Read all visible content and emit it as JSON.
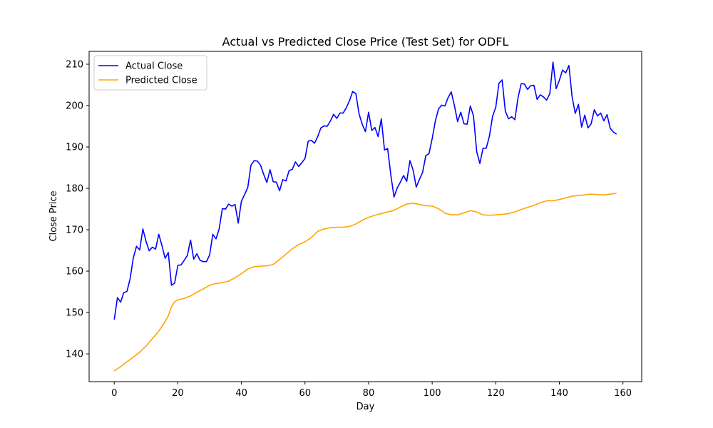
{
  "chart_data": {
    "type": "line",
    "title": "Actual vs Predicted Close Price (Test Set) for ODFL",
    "xlabel": "Day",
    "ylabel": "Close Price",
    "xlim": [
      -7.9,
      165.9
    ],
    "ylim": [
      133.3,
      213.1
    ],
    "xticks": [
      0,
      20,
      40,
      60,
      80,
      100,
      120,
      140,
      160
    ],
    "yticks": [
      140,
      150,
      160,
      170,
      180,
      190,
      200,
      210
    ],
    "grid": false,
    "legend_position": "top-left",
    "series": [
      {
        "name": "Actual Close",
        "color": "#0000ff",
        "points": [
          [
            0,
            148.3
          ],
          [
            1,
            153.6
          ],
          [
            2,
            152.5
          ],
          [
            3,
            154.8
          ],
          [
            4,
            155.1
          ],
          [
            5,
            158.2
          ],
          [
            6,
            163.2
          ],
          [
            7,
            166.0
          ],
          [
            8,
            165.1
          ],
          [
            9,
            170.2
          ],
          [
            10,
            167.2
          ],
          [
            11,
            164.9
          ],
          [
            12,
            165.8
          ],
          [
            13,
            165.3
          ],
          [
            14,
            168.9
          ],
          [
            15,
            166.2
          ],
          [
            16,
            163.1
          ],
          [
            17,
            164.5
          ],
          [
            18,
            156.6
          ],
          [
            19,
            157.1
          ],
          [
            20,
            161.4
          ],
          [
            21,
            161.5
          ],
          [
            22,
            162.6
          ],
          [
            23,
            163.8
          ],
          [
            24,
            167.5
          ],
          [
            25,
            162.9
          ],
          [
            26,
            164.2
          ],
          [
            27,
            162.6
          ],
          [
            28,
            162.3
          ],
          [
            29,
            162.3
          ],
          [
            30,
            163.9
          ],
          [
            31,
            168.9
          ],
          [
            32,
            167.8
          ],
          [
            33,
            170.2
          ],
          [
            34,
            175.1
          ],
          [
            35,
            175.0
          ],
          [
            36,
            176.2
          ],
          [
            37,
            175.7
          ],
          [
            38,
            176.1
          ],
          [
            39,
            171.6
          ],
          [
            40,
            176.9
          ],
          [
            41,
            178.5
          ],
          [
            42,
            180.2
          ],
          [
            43,
            185.6
          ],
          [
            44,
            186.7
          ],
          [
            45,
            186.6
          ],
          [
            46,
            185.6
          ],
          [
            47,
            183.4
          ],
          [
            48,
            181.4
          ],
          [
            49,
            184.5
          ],
          [
            50,
            181.6
          ],
          [
            51,
            181.5
          ],
          [
            52,
            179.4
          ],
          [
            53,
            182.1
          ],
          [
            54,
            181.8
          ],
          [
            55,
            184.3
          ],
          [
            56,
            184.6
          ],
          [
            57,
            186.4
          ],
          [
            58,
            185.3
          ],
          [
            59,
            186.2
          ],
          [
            60,
            187.2
          ],
          [
            61,
            191.4
          ],
          [
            62,
            191.6
          ],
          [
            63,
            190.9
          ],
          [
            64,
            192.5
          ],
          [
            65,
            194.6
          ],
          [
            66,
            195.1
          ],
          [
            67,
            195.0
          ],
          [
            68,
            196.3
          ],
          [
            69,
            197.9
          ],
          [
            70,
            196.9
          ],
          [
            71,
            198.2
          ],
          [
            72,
            198.2
          ],
          [
            73,
            199.5
          ],
          [
            74,
            201.2
          ],
          [
            75,
            203.4
          ],
          [
            76,
            202.9
          ],
          [
            77,
            198.0
          ],
          [
            78,
            195.5
          ],
          [
            79,
            193.7
          ],
          [
            80,
            198.4
          ],
          [
            81,
            194.0
          ],
          [
            82,
            194.7
          ],
          [
            83,
            192.5
          ],
          [
            84,
            196.8
          ],
          [
            85,
            189.3
          ],
          [
            86,
            189.6
          ],
          [
            87,
            183.2
          ],
          [
            88,
            177.9
          ],
          [
            89,
            180.1
          ],
          [
            90,
            181.5
          ],
          [
            91,
            183.1
          ],
          [
            92,
            181.7
          ],
          [
            93,
            186.7
          ],
          [
            94,
            184.4
          ],
          [
            95,
            180.3
          ],
          [
            96,
            182.2
          ],
          [
            97,
            183.9
          ],
          [
            98,
            187.9
          ],
          [
            99,
            188.4
          ],
          [
            100,
            192.0
          ],
          [
            101,
            196.3
          ],
          [
            102,
            199.2
          ],
          [
            103,
            200.1
          ],
          [
            104,
            199.9
          ],
          [
            105,
            201.9
          ],
          [
            106,
            203.3
          ],
          [
            107,
            200.0
          ],
          [
            108,
            196.1
          ],
          [
            109,
            198.4
          ],
          [
            110,
            195.6
          ],
          [
            111,
            195.5
          ],
          [
            112,
            199.9
          ],
          [
            113,
            197.5
          ],
          [
            114,
            188.9
          ],
          [
            115,
            186.0
          ],
          [
            116,
            189.7
          ],
          [
            117,
            189.7
          ],
          [
            118,
            192.6
          ],
          [
            119,
            197.4
          ],
          [
            120,
            199.6
          ],
          [
            121,
            205.4
          ],
          [
            122,
            206.2
          ],
          [
            123,
            198.7
          ],
          [
            124,
            196.8
          ],
          [
            125,
            197.3
          ],
          [
            126,
            196.6
          ],
          [
            127,
            201.9
          ],
          [
            128,
            205.3
          ],
          [
            129,
            205.2
          ],
          [
            130,
            203.9
          ],
          [
            131,
            204.8
          ],
          [
            132,
            204.9
          ],
          [
            133,
            201.5
          ],
          [
            134,
            202.6
          ],
          [
            135,
            202.1
          ],
          [
            136,
            201.3
          ],
          [
            137,
            202.9
          ],
          [
            138,
            210.5
          ],
          [
            139,
            204.1
          ],
          [
            140,
            206.1
          ],
          [
            141,
            208.6
          ],
          [
            142,
            207.9
          ],
          [
            143,
            209.7
          ],
          [
            144,
            202.2
          ],
          [
            145,
            198.1
          ],
          [
            146,
            200.3
          ],
          [
            147,
            194.8
          ],
          [
            148,
            197.7
          ],
          [
            149,
            194.6
          ],
          [
            150,
            195.6
          ],
          [
            151,
            199.0
          ],
          [
            152,
            197.5
          ],
          [
            153,
            198.2
          ],
          [
            154,
            196.3
          ],
          [
            155,
            197.8
          ],
          [
            156,
            194.5
          ],
          [
            157,
            193.6
          ],
          [
            158,
            193.1
          ]
        ]
      },
      {
        "name": "Predicted Close",
        "color": "#ffa500",
        "points": [
          [
            0,
            135.9
          ],
          [
            2,
            136.9
          ],
          [
            4,
            138.1
          ],
          [
            6,
            139.2
          ],
          [
            8,
            140.4
          ],
          [
            10,
            141.9
          ],
          [
            12,
            143.7
          ],
          [
            14,
            145.5
          ],
          [
            16,
            147.8
          ],
          [
            17,
            149.2
          ],
          [
            18,
            151.4
          ],
          [
            19,
            152.6
          ],
          [
            20,
            153.1
          ],
          [
            22,
            153.4
          ],
          [
            24,
            154.0
          ],
          [
            26,
            154.9
          ],
          [
            28,
            155.7
          ],
          [
            30,
            156.6
          ],
          [
            32,
            157.0
          ],
          [
            34,
            157.2
          ],
          [
            36,
            157.6
          ],
          [
            38,
            158.4
          ],
          [
            40,
            159.4
          ],
          [
            42,
            160.5
          ],
          [
            44,
            161.1
          ],
          [
            46,
            161.2
          ],
          [
            48,
            161.3
          ],
          [
            50,
            161.6
          ],
          [
            52,
            162.8
          ],
          [
            54,
            164.1
          ],
          [
            56,
            165.4
          ],
          [
            58,
            166.4
          ],
          [
            60,
            167.1
          ],
          [
            62,
            168.1
          ],
          [
            64,
            169.6
          ],
          [
            66,
            170.2
          ],
          [
            68,
            170.5
          ],
          [
            70,
            170.6
          ],
          [
            72,
            170.6
          ],
          [
            74,
            170.8
          ],
          [
            76,
            171.4
          ],
          [
            78,
            172.3
          ],
          [
            80,
            173.0
          ],
          [
            82,
            173.5
          ],
          [
            84,
            173.9
          ],
          [
            86,
            174.3
          ],
          [
            88,
            174.7
          ],
          [
            90,
            175.5
          ],
          [
            92,
            176.2
          ],
          [
            94,
            176.4
          ],
          [
            96,
            176.1
          ],
          [
            98,
            175.8
          ],
          [
            100,
            175.7
          ],
          [
            102,
            175.1
          ],
          [
            104,
            174.0
          ],
          [
            106,
            173.6
          ],
          [
            108,
            173.6
          ],
          [
            110,
            174.1
          ],
          [
            112,
            174.6
          ],
          [
            114,
            174.3
          ],
          [
            116,
            173.6
          ],
          [
            118,
            173.5
          ],
          [
            120,
            173.6
          ],
          [
            122,
            173.7
          ],
          [
            124,
            173.9
          ],
          [
            126,
            174.3
          ],
          [
            128,
            174.9
          ],
          [
            130,
            175.4
          ],
          [
            132,
            175.9
          ],
          [
            134,
            176.5
          ],
          [
            136,
            177.0
          ],
          [
            138,
            177.0
          ],
          [
            140,
            177.3
          ],
          [
            142,
            177.7
          ],
          [
            144,
            178.1
          ],
          [
            146,
            178.3
          ],
          [
            148,
            178.4
          ],
          [
            150,
            178.6
          ],
          [
            152,
            178.5
          ],
          [
            154,
            178.4
          ],
          [
            156,
            178.6
          ],
          [
            158,
            178.8
          ]
        ]
      }
    ]
  }
}
